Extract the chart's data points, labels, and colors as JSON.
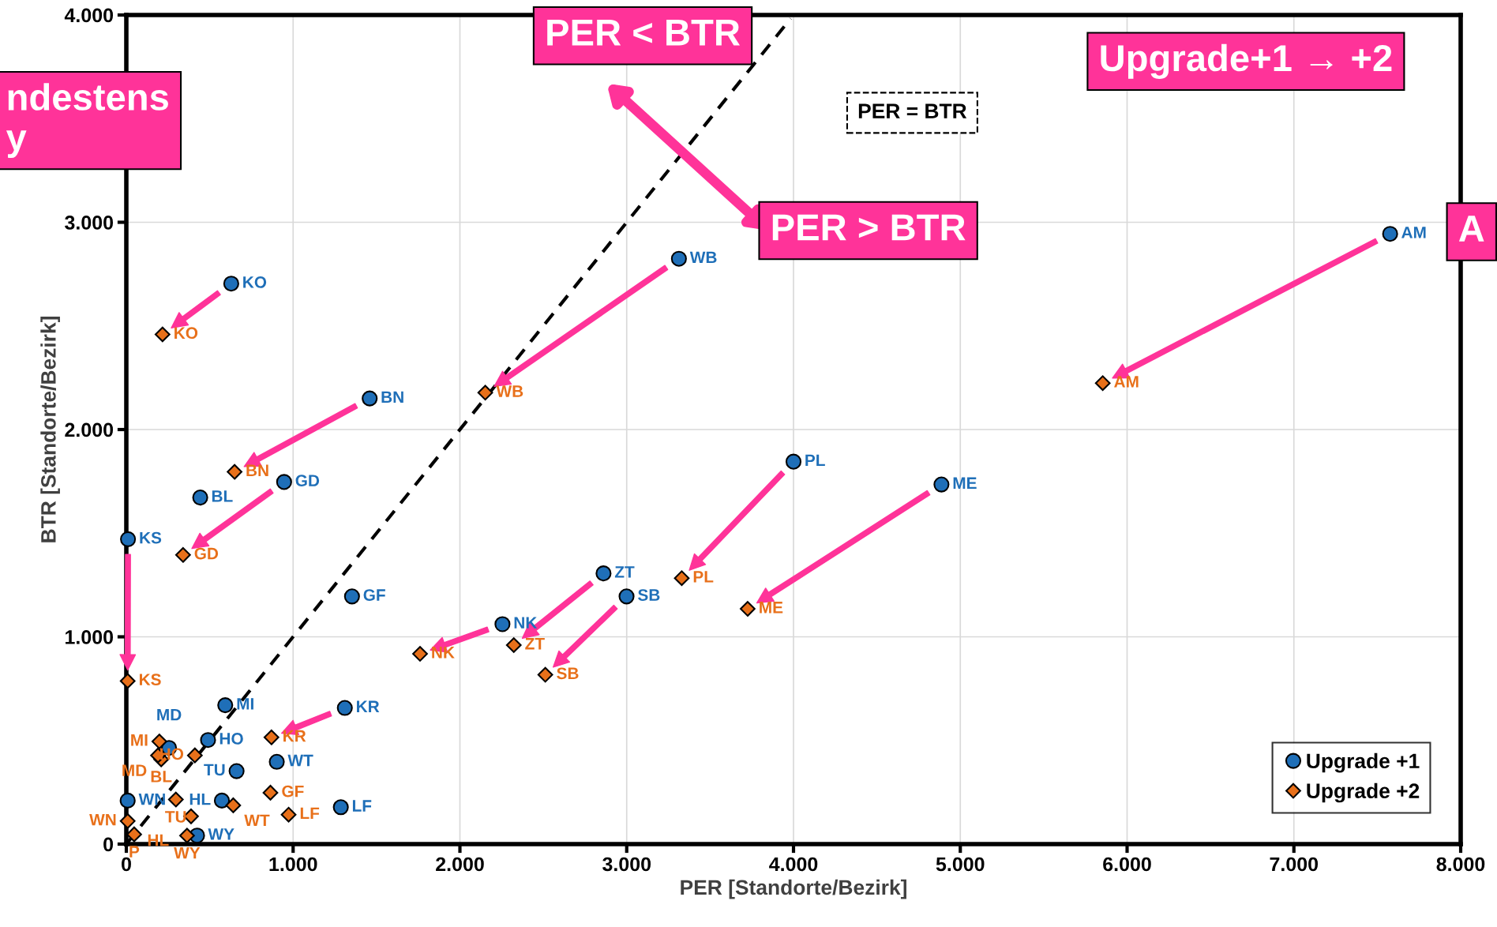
{
  "chart_data": {
    "type": "scatter",
    "xlabel": "PER [Standorte/Bezirk]",
    "ylabel": "BTR [Standorte/Bezirk]",
    "xlim": [
      0,
      8000
    ],
    "ylim": [
      0,
      4000
    ],
    "xticks": [
      0,
      {
        "value": 1000,
        "label": "1.000"
      },
      {
        "value": 2000,
        "label": "2.000"
      },
      {
        "value": 3000,
        "label": "3.000"
      },
      {
        "value": 4000,
        "label": "4.000"
      },
      {
        "value": 5000,
        "label": "5.000"
      },
      {
        "value": 6000,
        "label": "6.000"
      },
      {
        "value": 7000,
        "label": "7.000"
      },
      {
        "value": 8000,
        "label": "8.000"
      }
    ],
    "yticks": [
      0,
      {
        "value": 1000,
        "label": "1.000"
      },
      {
        "value": 2000,
        "label": "2.000"
      },
      {
        "value": 3000,
        "label": "3.000"
      },
      {
        "value": 4000,
        "label": "4.000"
      }
    ],
    "grid": true,
    "legend": "bottom right",
    "series": [
      {
        "name": "Upgrade +1",
        "color": "#1f6fb8",
        "marker": "circle",
        "x": [
          629,
          1459,
          946,
          10,
          3313,
          7577,
          4000,
          4887,
          2861,
          2255,
          2999,
          1310,
          443,
          1353,
          593,
          256,
          490,
          902,
          661,
          573,
          8,
          1286,
          424
        ],
        "values": [
          2704,
          2150,
          1747,
          1471,
          2824,
          2944,
          1845,
          1735,
          1306,
          1061,
          1195,
          657,
          1672,
          1195,
          670,
          464,
          502,
          397,
          352,
          210,
          210,
          178,
          41
        ],
        "value_labels": [
          "KO",
          "BN",
          "GD",
          "KS",
          "WB",
          "AM",
          "PL",
          "ME",
          "ZT",
          "NK",
          "SB",
          "KR",
          "BL",
          "GF",
          "MI",
          "MD",
          "HO",
          "WT",
          "TU",
          "HL",
          "WN",
          "LF",
          "WY"
        ]
      },
      {
        "name": "Upgrade +2",
        "color": "#e8701a",
        "marker": "diamond",
        "x": [
          217,
          649,
          340,
          8,
          2152,
          5854,
          3330,
          3725,
          2323,
          1761,
          2512,
          870,
          209,
          864,
          198,
          190,
          411,
          641,
          297,
          388,
          8,
          973,
          364,
          47
        ],
        "values": [
          2459,
          1796,
          1395,
          787,
          2178,
          2224,
          1283,
          1135,
          960,
          918,
          817,
          515,
          409,
          248,
          495,
          428,
          428,
          187,
          215,
          134,
          111,
          142,
          41,
          47
        ],
        "value_labels": [
          "KO",
          "BN",
          "GD",
          "KS",
          "WB",
          "AM",
          "PL",
          "ME",
          "ZT",
          "NK",
          "SB",
          "KR",
          "BL",
          "GF",
          "MI",
          "MD",
          "HO",
          "WT",
          "TU",
          "HL",
          "WN",
          "LF",
          "WY",
          "P"
        ]
      },
      {
        "type": "line",
        "color": "#000000",
        "line_style": "dashed",
        "marker": "none",
        "x": [
          0,
          3983
        ],
        "values": [
          0,
          3983
        ]
      }
    ],
    "annotations": [
      "PER < BTR",
      "PER > BTR",
      "PER = BTR",
      "Upgrade+1 → +2",
      "ndestens\ny",
      "A"
    ]
  }
}
